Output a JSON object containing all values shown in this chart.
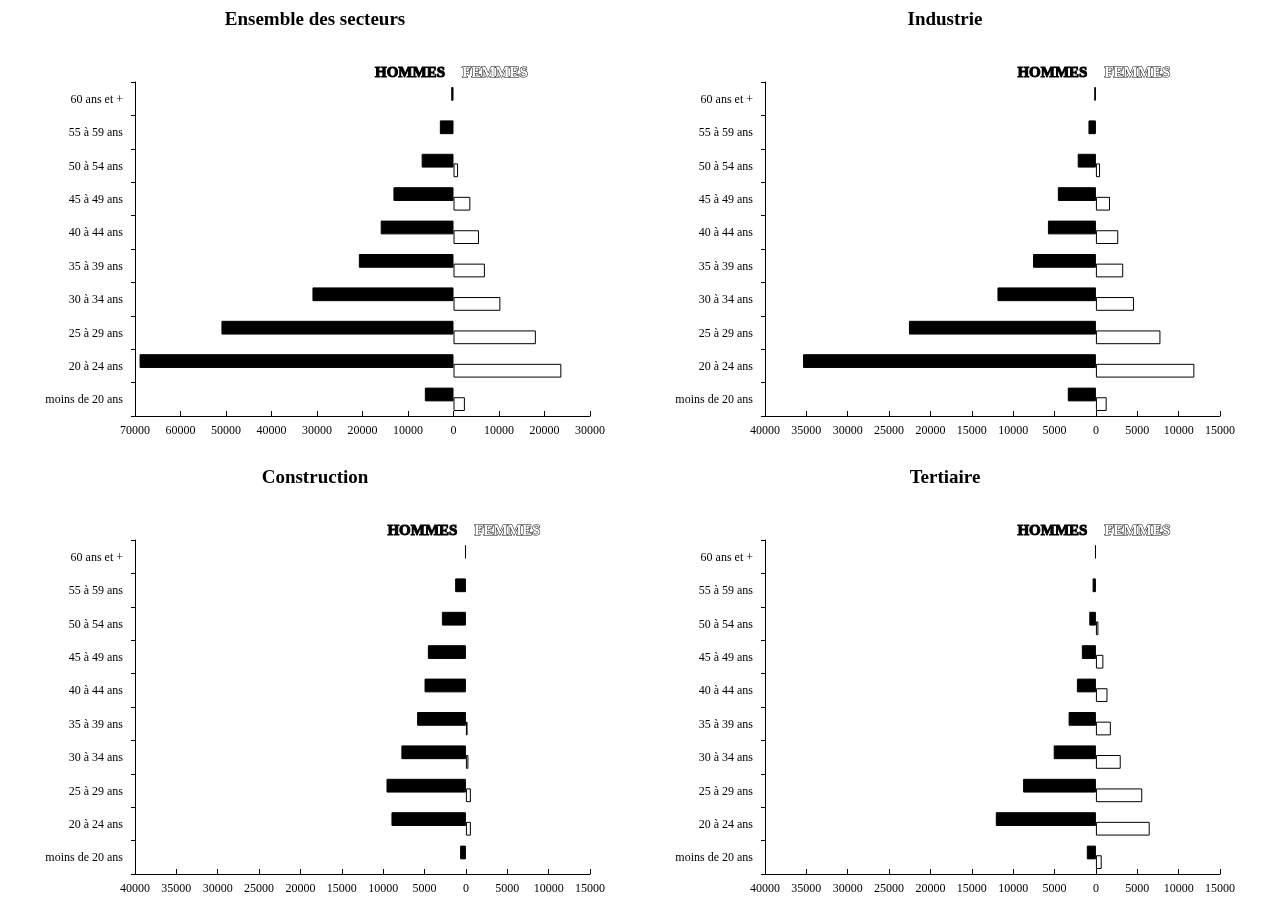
{
  "chart_data": [
    {
      "type": "bar",
      "orientation": "horizontal",
      "title": "Ensemble des secteurs",
      "categories": [
        "60 ans et +",
        "55 à 59 ans",
        "50 à 54 ans",
        "45 à 49 ans",
        "40 à 44 ans",
        "35 à 39 ans",
        "30 à 34 ans",
        "25 à 29 ans",
        "20 à 24 ans",
        "moins de 20 ans"
      ],
      "series": [
        {
          "name": "HOMMES",
          "color": "#000000",
          "values": [
            -500,
            -3000,
            -7000,
            -13200,
            -16000,
            -20800,
            -31000,
            -51000,
            -69000,
            -6300
          ]
        },
        {
          "name": "FEMMES",
          "color": "#ffffff",
          "values": [
            0,
            0,
            1000,
            3700,
            5600,
            6900,
            10300,
            18100,
            23700,
            2500
          ]
        }
      ],
      "xlim": [
        -70000,
        30000
      ],
      "xticks": [
        {
          "value": -70000,
          "label": "70000"
        },
        {
          "value": -60000,
          "label": "60000"
        },
        {
          "value": -50000,
          "label": "50000"
        },
        {
          "value": -40000,
          "label": "40000"
        },
        {
          "value": -30000,
          "label": "30000"
        },
        {
          "value": -20000,
          "label": "20000"
        },
        {
          "value": -10000,
          "label": "10000"
        },
        0,
        10000,
        20000,
        30000
      ]
    },
    {
      "type": "bar",
      "orientation": "horizontal",
      "title": "Industrie",
      "categories": [
        "60 ans et +",
        "55 à 59 ans",
        "50 à 54 ans",
        "45 à 49 ans",
        "40 à 44 ans",
        "35 à 39 ans",
        "30 à 34 ans",
        "25 à 29 ans",
        "20 à 24 ans",
        "moins de 20 ans"
      ],
      "series": [
        {
          "name": "HOMMES",
          "color": "#000000",
          "values": [
            -200,
            -900,
            -2200,
            -4600,
            -5800,
            -7600,
            -11900,
            -22600,
            -35400,
            -3400
          ]
        },
        {
          "name": "FEMMES",
          "color": "#ffffff",
          "values": [
            0,
            0,
            500,
            1700,
            2700,
            3300,
            4600,
            7800,
            11900,
            1300
          ]
        }
      ],
      "xlim": [
        -40000,
        15000
      ],
      "xticks": [
        {
          "value": -40000,
          "label": "40000"
        },
        {
          "value": -35000,
          "label": "35000"
        },
        {
          "value": -30000,
          "label": "30000"
        },
        {
          "value": -25000,
          "label": "25000"
        },
        {
          "value": -20000,
          "label": "20000"
        },
        {
          "value": -15000,
          "label": "15000"
        },
        {
          "value": -10000,
          "label": "10000"
        },
        {
          "value": -5000,
          "label": "5000"
        },
        0,
        5000,
        10000,
        15000
      ]
    },
    {
      "type": "bar",
      "orientation": "horizontal",
      "title": "Construction",
      "categories": [
        "60 ans et +",
        "55 à 59 ans",
        "50 à 54 ans",
        "45 à 49 ans",
        "40 à 44 ans",
        "35 à 39 ans",
        "30 à 34 ans",
        "25 à 29 ans",
        "20 à 24 ans",
        "moins de 20 ans"
      ],
      "series": [
        {
          "name": "HOMMES",
          "color": "#000000",
          "values": [
            -100,
            -1300,
            -2900,
            -4600,
            -5000,
            -5900,
            -7800,
            -9600,
            -9000,
            -700
          ]
        },
        {
          "name": "FEMMES",
          "color": "#ffffff",
          "values": [
            0,
            0,
            0,
            0,
            0,
            200,
            300,
            600,
            600,
            0
          ]
        }
      ],
      "xlim": [
        -40000,
        15000
      ],
      "xticks": [
        {
          "value": -40000,
          "label": "40000"
        },
        {
          "value": -35000,
          "label": "35000"
        },
        {
          "value": -30000,
          "label": "30000"
        },
        {
          "value": -25000,
          "label": "25000"
        },
        {
          "value": -20000,
          "label": "20000"
        },
        {
          "value": -15000,
          "label": "15000"
        },
        {
          "value": -10000,
          "label": "10000"
        },
        {
          "value": -5000,
          "label": "5000"
        },
        0,
        5000,
        10000,
        15000
      ]
    },
    {
      "type": "bar",
      "orientation": "horizontal",
      "title": "Tertiaire",
      "categories": [
        "60 ans et +",
        "55 à 59 ans",
        "50 à 54 ans",
        "45 à 49 ans",
        "40 à 44 ans",
        "35 à 39 ans",
        "30 à 34 ans",
        "25 à 29 ans",
        "20 à 24 ans",
        "moins de 20 ans"
      ],
      "series": [
        {
          "name": "HOMMES",
          "color": "#000000",
          "values": [
            -100,
            -400,
            -800,
            -1700,
            -2300,
            -3300,
            -5100,
            -8800,
            -12100,
            -1100
          ]
        },
        {
          "name": "FEMMES",
          "color": "#ffffff",
          "values": [
            0,
            0,
            300,
            900,
            1400,
            1800,
            3000,
            5600,
            6500,
            700
          ]
        }
      ],
      "xlim": [
        -40000,
        15000
      ],
      "xticks": [
        {
          "value": -40000,
          "label": "40000"
        },
        {
          "value": -35000,
          "label": "35000"
        },
        {
          "value": -30000,
          "label": "30000"
        },
        {
          "value": -25000,
          "label": "25000"
        },
        {
          "value": -20000,
          "label": "20000"
        },
        {
          "value": -15000,
          "label": "15000"
        },
        {
          "value": -10000,
          "label": "10000"
        },
        {
          "value": -5000,
          "label": "5000"
        },
        0,
        5000,
        10000,
        15000
      ]
    }
  ]
}
